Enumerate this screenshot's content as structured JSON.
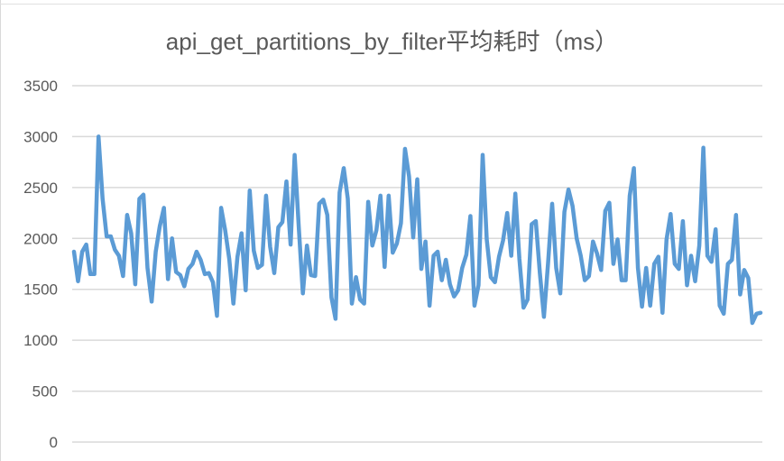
{
  "chart_data": {
    "type": "line",
    "title": "api_get_partitions_by_filter平均耗时（ms）",
    "xlabel": "",
    "ylabel": "",
    "ylim": [
      0,
      3500
    ],
    "yticks": [
      "0",
      "500",
      "1000",
      "1500",
      "2000",
      "2500",
      "3000",
      "3500"
    ],
    "grid": true,
    "legend": "none",
    "color": "#5b9bd5",
    "series": [
      {
        "values": [
          1870,
          1580,
          1870,
          1940,
          1650,
          1650,
          3000,
          2390,
          2020,
          2020,
          1890,
          1830,
          1630,
          2230,
          2050,
          1550,
          2390,
          2430,
          1710,
          1380,
          1870,
          2120,
          2300,
          1600,
          2000,
          1670,
          1640,
          1530,
          1700,
          1750,
          1870,
          1790,
          1650,
          1660,
          1570,
          1240,
          2300,
          2080,
          1800,
          1360,
          1820,
          2050,
          1490,
          2470,
          1880,
          1710,
          1740,
          2420,
          1920,
          1660,
          2110,
          2160,
          2560,
          1940,
          2820,
          2120,
          1460,
          1930,
          1640,
          1630,
          2340,
          2380,
          2230,
          1420,
          1210,
          2450,
          2690,
          2390,
          1360,
          1620,
          1400,
          1360,
          2360,
          1930,
          2080,
          2420,
          1720,
          2420,
          1860,
          1950,
          2150,
          2880,
          2610,
          2010,
          2580,
          1700,
          1970,
          1340,
          1830,
          1870,
          1590,
          1790,
          1550,
          1430,
          1490,
          1710,
          1840,
          2220,
          1340,
          1540,
          2820,
          1990,
          1620,
          1570,
          1820,
          1980,
          2250,
          1830,
          2440,
          1800,
          1320,
          1400,
          2140,
          2170,
          1660,
          1230,
          1760,
          2340,
          1710,
          1460,
          2260,
          2480,
          2320,
          2000,
          1830,
          1590,
          1630,
          1970,
          1850,
          1690,
          2270,
          2350,
          1750,
          1990,
          1590,
          1590,
          2420,
          2690,
          1710,
          1330,
          1710,
          1340,
          1750,
          1820,
          1270,
          1990,
          2240,
          1750,
          1700,
          2170,
          1540,
          1830,
          1580,
          1930,
          2890,
          1830,
          1770,
          2090,
          1340,
          1260,
          1750,
          1790,
          2230,
          1450,
          1690,
          1610,
          1170,
          1260,
          1270
        ]
      }
    ]
  }
}
